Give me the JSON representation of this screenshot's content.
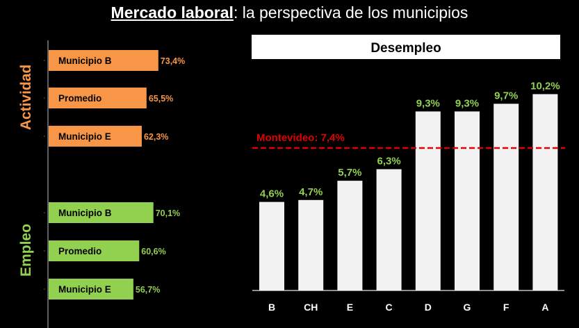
{
  "title": {
    "bold": "Mercado laboral",
    "rest": ": la perspectiva de los municipios"
  },
  "chart_data": [
    {
      "type": "bar",
      "orientation": "horizontal",
      "groups": [
        {
          "name": "Actividad",
          "color": "#F79646",
          "categories": [
            "Municipio B",
            "Promedio",
            "Municipio E"
          ],
          "values": [
            73.4,
            65.5,
            62.3
          ],
          "labels": [
            "73,4%",
            "65,5%",
            "62,3%"
          ]
        },
        {
          "name": "Empleo",
          "color": "#92D050",
          "categories": [
            "Municipio B",
            "Promedio",
            "Municipio E"
          ],
          "values": [
            70.1,
            60.6,
            56.7
          ],
          "labels": [
            "70,1%",
            "60,6%",
            "56,7%"
          ]
        }
      ]
    },
    {
      "type": "bar",
      "title": "Desempleo",
      "categories": [
        "B",
        "CH",
        "E",
        "C",
        "D",
        "G",
        "F",
        "A"
      ],
      "values": [
        4.6,
        4.7,
        5.7,
        6.3,
        9.3,
        9.3,
        9.7,
        10.2
      ],
      "labels": [
        "4,6%",
        "4,7%",
        "5,7%",
        "6,3%",
        "9,3%",
        "9,3%",
        "9,7%",
        "10,2%"
      ],
      "bar_color": "#F2F2F2",
      "label_color": "#92D050",
      "reference_line": {
        "label": "Montevideo: 7,4%",
        "value": 7.4,
        "color": "#E00000",
        "style": "dashed"
      }
    }
  ]
}
